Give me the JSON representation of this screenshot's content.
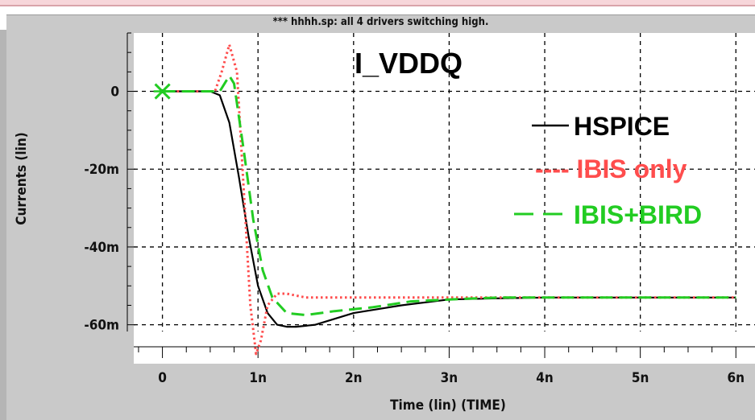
{
  "window": {
    "title": "*** hhhh.sp: all 4 drivers switching high."
  },
  "chart_data": {
    "type": "line",
    "title": "I_VDDQ",
    "xlabel": "Time (lin) (TIME)",
    "ylabel": "Currents (lin)",
    "xlim": [
      -0.3,
      6.2
    ],
    "ylim": [
      -0.07,
      0.015
    ],
    "x_ticks": [
      0,
      1,
      2,
      3,
      4,
      5,
      6
    ],
    "x_tick_labels": [
      "0",
      "1n",
      "2n",
      "3n",
      "4n",
      "5n",
      "6n"
    ],
    "y_ticks": [
      0,
      -0.02,
      -0.04,
      -0.06
    ],
    "y_tick_labels": [
      "0",
      "-20m",
      "-40m",
      "-60m"
    ],
    "grid": true,
    "legend_position": "right",
    "marker": {
      "x": 0,
      "y": 0,
      "color": "#22cc22",
      "symbol": "x"
    },
    "series": [
      {
        "name": "HSPICE",
        "legend_label": "HSPICE",
        "color": "#000000",
        "style": "solid",
        "x": [
          0,
          0.5,
          0.6,
          0.7,
          0.8,
          0.9,
          1.0,
          1.1,
          1.2,
          1.3,
          1.4,
          1.6,
          2.0,
          2.5,
          3.0,
          3.5,
          4.0,
          5.0,
          6.0
        ],
        "y": [
          0,
          0,
          -0.001,
          -0.008,
          -0.022,
          -0.037,
          -0.05,
          -0.057,
          -0.06,
          -0.0605,
          -0.0605,
          -0.06,
          -0.057,
          -0.055,
          -0.0535,
          -0.0532,
          -0.053,
          -0.053,
          -0.053
        ]
      },
      {
        "name": "IBIS only",
        "legend_label": "---- IBIS only",
        "color": "#ff4d4d",
        "style": "dotted",
        "x": [
          0,
          0.55,
          0.62,
          0.7,
          0.78,
          0.85,
          0.92,
          0.98,
          1.03,
          1.1,
          1.2,
          1.3,
          1.5,
          2.0,
          3.0,
          4.0,
          5.0,
          6.0
        ],
        "y": [
          0,
          0,
          0.005,
          0.012,
          0.005,
          -0.025,
          -0.055,
          -0.0675,
          -0.064,
          -0.055,
          -0.052,
          -0.052,
          -0.053,
          -0.053,
          -0.053,
          -0.053,
          -0.053,
          -0.053
        ]
      },
      {
        "name": "IBIS+BIRD",
        "legend_label": "IBIS+BIRD",
        "color": "#22cc22",
        "style": "dashed",
        "x": [
          0,
          0.6,
          0.7,
          0.75,
          0.85,
          0.95,
          1.05,
          1.15,
          1.3,
          1.5,
          1.8,
          2.2,
          2.6,
          3.0,
          3.5,
          4.0,
          5.0,
          6.0
        ],
        "y": [
          0,
          0,
          0.004,
          0.002,
          -0.015,
          -0.033,
          -0.046,
          -0.053,
          -0.057,
          -0.0575,
          -0.0565,
          -0.0555,
          -0.054,
          -0.0535,
          -0.053,
          -0.053,
          -0.053,
          -0.053
        ]
      }
    ]
  }
}
